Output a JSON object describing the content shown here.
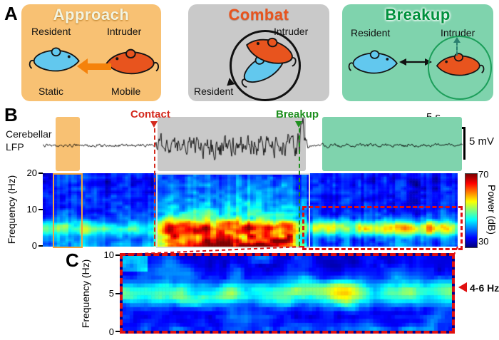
{
  "panels": {
    "a_label": "A",
    "approach": {
      "title": "Approach",
      "top_left": "Resident",
      "top_right": "Intruder",
      "bottom_left": "Static",
      "bottom_right": "Mobile",
      "bg_color": "#F8C173"
    },
    "combat": {
      "title": "Combat",
      "top_right": "Intruder",
      "bottom_left": "Resident",
      "bg_color": "#C9C9C9",
      "title_color": "#E8541E"
    },
    "breakup": {
      "title": "Breakup",
      "top_left": "Resident",
      "top_right": "Intruder",
      "bg_color": "#7FD3AD",
      "title_color": "#00913D"
    }
  },
  "panel_b": {
    "label": "B",
    "contact": "Contact",
    "breakup": "Breakup",
    "contact_color": "#D42A1E",
    "breakup_color": "#1E8F1E",
    "signal_line1": "Cerebellar",
    "signal_line2": "LFP",
    "time_scale": "5 s",
    "amp_scale": "5 mV",
    "freq_axis": {
      "label": "Frequency (Hz)",
      "ticks": [
        "20",
        "10",
        "0"
      ]
    },
    "colorbar": {
      "max": "70",
      "min": "30",
      "label": "Power (dB)"
    }
  },
  "panel_c": {
    "label": "C",
    "freq_axis": {
      "label": "Frequency (Hz)",
      "ticks": [
        "10",
        "5",
        "0"
      ]
    },
    "annotation": "4-6 Hz"
  },
  "chart_data": [
    {
      "type": "line",
      "name": "Cerebellar LFP trace",
      "scale_bars": {
        "time": "5 s",
        "amplitude": "5 mV"
      },
      "event_markers": [
        "Contact",
        "Breakup"
      ],
      "phase_shading": [
        "Approach",
        "Combat",
        "Breakup"
      ]
    },
    {
      "type": "heatmap",
      "name": "LFP spectrogram",
      "ylabel": "Frequency (Hz)",
      "ylim": [
        0,
        20
      ],
      "colorbar_label": "Power (dB)",
      "colorbar_range": [
        30,
        70
      ]
    },
    {
      "type": "heatmap",
      "name": "Post-breakup spectrogram zoom",
      "ylabel": "Frequency (Hz)",
      "ylim": [
        0,
        10
      ],
      "highlight": "4-6 Hz"
    }
  ]
}
